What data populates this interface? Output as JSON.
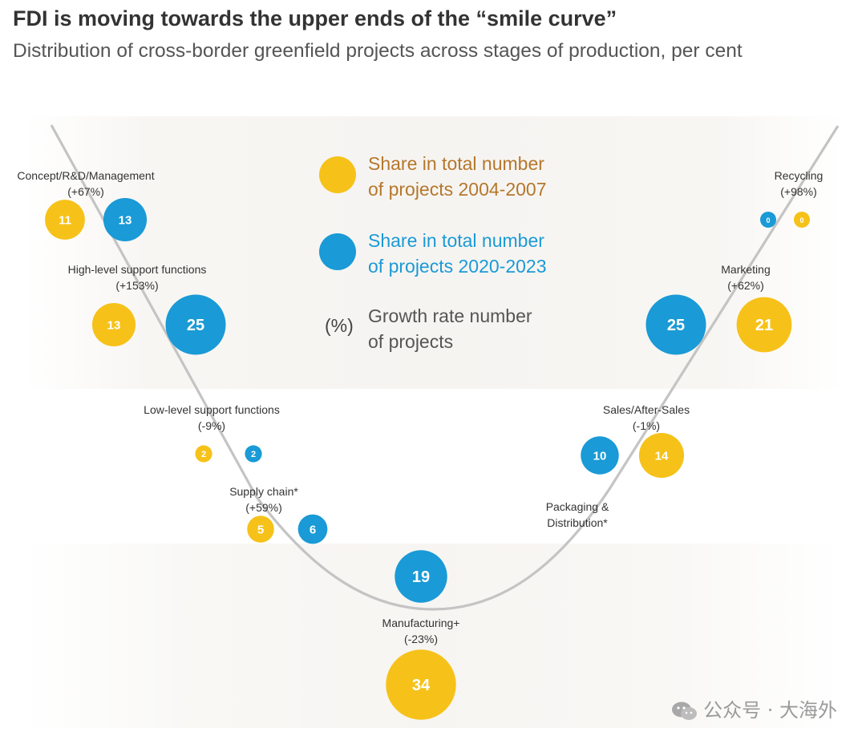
{
  "title": "FDI is moving towards the upper ends of the “smile curve”",
  "subtitle": "Distribution of cross-border greenfield projects across stages of production, per cent",
  "watermark": "公众号 · 大海外",
  "colors": {
    "series_2004_2007": "#F6C21A",
    "series_2020_2023": "#1A9AD6",
    "legend_text_2004_2007": "#B5772C",
    "legend_text_2020_2023": "#1A9AD6",
    "curve": "#C4C4C4"
  },
  "legend": {
    "series_2004_2007": [
      "Share in total number",
      "of projects 2004-2007"
    ],
    "series_2020_2023": [
      "Share in total number",
      "of projects 2020-2023"
    ],
    "growth_symbol": "(%)",
    "growth_text": [
      "Growth rate number",
      "of projects"
    ]
  },
  "chart_data": {
    "type": "bubble",
    "series": [
      {
        "name": "Share in total number of projects 2004-2007",
        "color": "#F6C21A"
      },
      {
        "name": "Share in total number of projects 2020-2023",
        "color": "#1A9AD6"
      }
    ],
    "stages": [
      {
        "name": "Concept/R&D/Management",
        "growth": "(+67%)",
        "share_2004_2007": 11,
        "share_2020_2023": 13
      },
      {
        "name": "High-level support functions",
        "growth": "(+153%)",
        "share_2004_2007": 13,
        "share_2020_2023": 25
      },
      {
        "name": "Low-level support functions",
        "growth": "(-9%)",
        "share_2004_2007": 2,
        "share_2020_2023": 2
      },
      {
        "name": "Supply chain*",
        "growth": "(+59%)",
        "share_2004_2007": 5,
        "share_2020_2023": 6
      },
      {
        "name": "Manufacturing+",
        "growth": "(-23%)",
        "share_2004_2007": 34,
        "share_2020_2023": 19
      },
      {
        "name": "Packaging & Distribution*",
        "growth": "",
        "share_2004_2007": null,
        "share_2020_2023": null
      },
      {
        "name": "Sales/After-Sales",
        "growth": "(-1%)",
        "share_2004_2007": 14,
        "share_2020_2023": 10
      },
      {
        "name": "Marketing",
        "growth": "(+62%)",
        "share_2004_2007": 21,
        "share_2020_2023": 25
      },
      {
        "name": "Recycling",
        "growth": "(+98%)",
        "share_2004_2007": 0,
        "share_2020_2023": 0
      }
    ]
  }
}
